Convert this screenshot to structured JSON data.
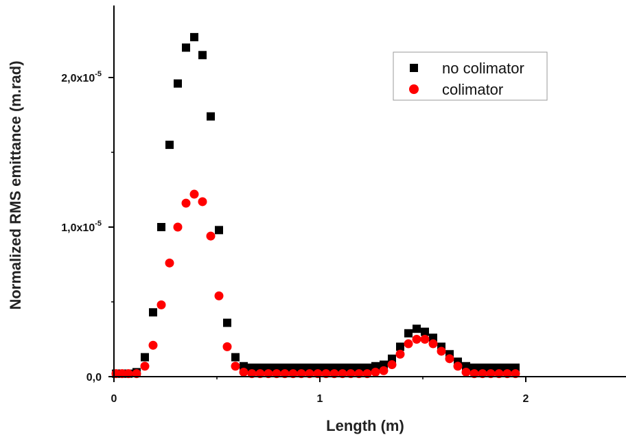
{
  "chart_data": {
    "type": "scatter",
    "xlabel": "Length (m)",
    "ylabel": "Normalized RMS emittance (m.rad)",
    "xlim": [
      0,
      2.5
    ],
    "ylim": [
      0,
      2.5e-05
    ],
    "x_ticks": [
      {
        "value": 0,
        "label": "0"
      },
      {
        "value": 1,
        "label": "1"
      },
      {
        "value": 2,
        "label": "2"
      }
    ],
    "y_ticks": [
      {
        "value": 0,
        "mantissa": "0,0",
        "exponent": ""
      },
      {
        "value": 1e-05,
        "mantissa": "1,0x10",
        "exponent": "-5"
      },
      {
        "value": 2e-05,
        "mantissa": "2,0x10",
        "exponent": "-5"
      }
    ],
    "legend_position": "top-right",
    "grid": false,
    "series": [
      {
        "name": "no colimator",
        "marker": "square",
        "color": "#000000",
        "points": [
          [
            0.01,
            2e-07
          ],
          [
            0.04,
            2e-07
          ],
          [
            0.07,
            2e-07
          ],
          [
            0.11,
            3e-07
          ],
          [
            0.15,
            1.3e-06
          ],
          [
            0.19,
            4.3e-06
          ],
          [
            0.23,
            1e-05
          ],
          [
            0.27,
            1.55e-05
          ],
          [
            0.31,
            1.96e-05
          ],
          [
            0.35,
            2.2e-05
          ],
          [
            0.39,
            2.27e-05
          ],
          [
            0.43,
            2.15e-05
          ],
          [
            0.47,
            1.74e-05
          ],
          [
            0.51,
            9.8e-06
          ],
          [
            0.55,
            3.6e-06
          ],
          [
            0.59,
            1.3e-06
          ],
          [
            0.63,
            7e-07
          ],
          [
            0.67,
            6e-07
          ],
          [
            0.71,
            6e-07
          ],
          [
            0.75,
            6e-07
          ],
          [
            0.79,
            6e-07
          ],
          [
            0.83,
            6e-07
          ],
          [
            0.87,
            6e-07
          ],
          [
            0.91,
            6e-07
          ],
          [
            0.95,
            6e-07
          ],
          [
            0.99,
            6e-07
          ],
          [
            1.03,
            6e-07
          ],
          [
            1.07,
            6e-07
          ],
          [
            1.11,
            6e-07
          ],
          [
            1.15,
            6e-07
          ],
          [
            1.19,
            6e-07
          ],
          [
            1.23,
            6e-07
          ],
          [
            1.27,
            7e-07
          ],
          [
            1.31,
            8e-07
          ],
          [
            1.35,
            1.2e-06
          ],
          [
            1.39,
            2e-06
          ],
          [
            1.43,
            2.9e-06
          ],
          [
            1.47,
            3.2e-06
          ],
          [
            1.51,
            3e-06
          ],
          [
            1.55,
            2.6e-06
          ],
          [
            1.59,
            2e-06
          ],
          [
            1.63,
            1.5e-06
          ],
          [
            1.67,
            1e-06
          ],
          [
            1.71,
            7e-07
          ],
          [
            1.75,
            6e-07
          ],
          [
            1.79,
            6e-07
          ],
          [
            1.83,
            6e-07
          ],
          [
            1.87,
            6e-07
          ],
          [
            1.91,
            6e-07
          ],
          [
            1.95,
            6e-07
          ]
        ]
      },
      {
        "name": "colimator",
        "marker": "circle",
        "color": "#ff0000",
        "points": [
          [
            0.01,
            2e-07
          ],
          [
            0.04,
            2e-07
          ],
          [
            0.07,
            2e-07
          ],
          [
            0.11,
            2e-07
          ],
          [
            0.15,
            7e-07
          ],
          [
            0.19,
            2.1e-06
          ],
          [
            0.23,
            4.8e-06
          ],
          [
            0.27,
            7.6e-06
          ],
          [
            0.31,
            1e-05
          ],
          [
            0.35,
            1.16e-05
          ],
          [
            0.39,
            1.22e-05
          ],
          [
            0.43,
            1.17e-05
          ],
          [
            0.47,
            9.4e-06
          ],
          [
            0.51,
            5.4e-06
          ],
          [
            0.55,
            2e-06
          ],
          [
            0.59,
            7e-07
          ],
          [
            0.63,
            3e-07
          ],
          [
            0.67,
            2e-07
          ],
          [
            0.71,
            2e-07
          ],
          [
            0.75,
            2e-07
          ],
          [
            0.79,
            2e-07
          ],
          [
            0.83,
            2e-07
          ],
          [
            0.87,
            2e-07
          ],
          [
            0.91,
            2e-07
          ],
          [
            0.95,
            2e-07
          ],
          [
            0.99,
            2e-07
          ],
          [
            1.03,
            2e-07
          ],
          [
            1.07,
            2e-07
          ],
          [
            1.11,
            2e-07
          ],
          [
            1.15,
            2e-07
          ],
          [
            1.19,
            2e-07
          ],
          [
            1.23,
            2e-07
          ],
          [
            1.27,
            3e-07
          ],
          [
            1.31,
            4e-07
          ],
          [
            1.35,
            8e-07
          ],
          [
            1.39,
            1.5e-06
          ],
          [
            1.43,
            2.2e-06
          ],
          [
            1.47,
            2.5e-06
          ],
          [
            1.51,
            2.5e-06
          ],
          [
            1.55,
            2.2e-06
          ],
          [
            1.59,
            1.7e-06
          ],
          [
            1.63,
            1.2e-06
          ],
          [
            1.67,
            7e-07
          ],
          [
            1.71,
            3e-07
          ],
          [
            1.75,
            2e-07
          ],
          [
            1.79,
            2e-07
          ],
          [
            1.83,
            2e-07
          ],
          [
            1.87,
            2e-07
          ],
          [
            1.91,
            2e-07
          ],
          [
            1.95,
            2e-07
          ]
        ]
      }
    ]
  }
}
